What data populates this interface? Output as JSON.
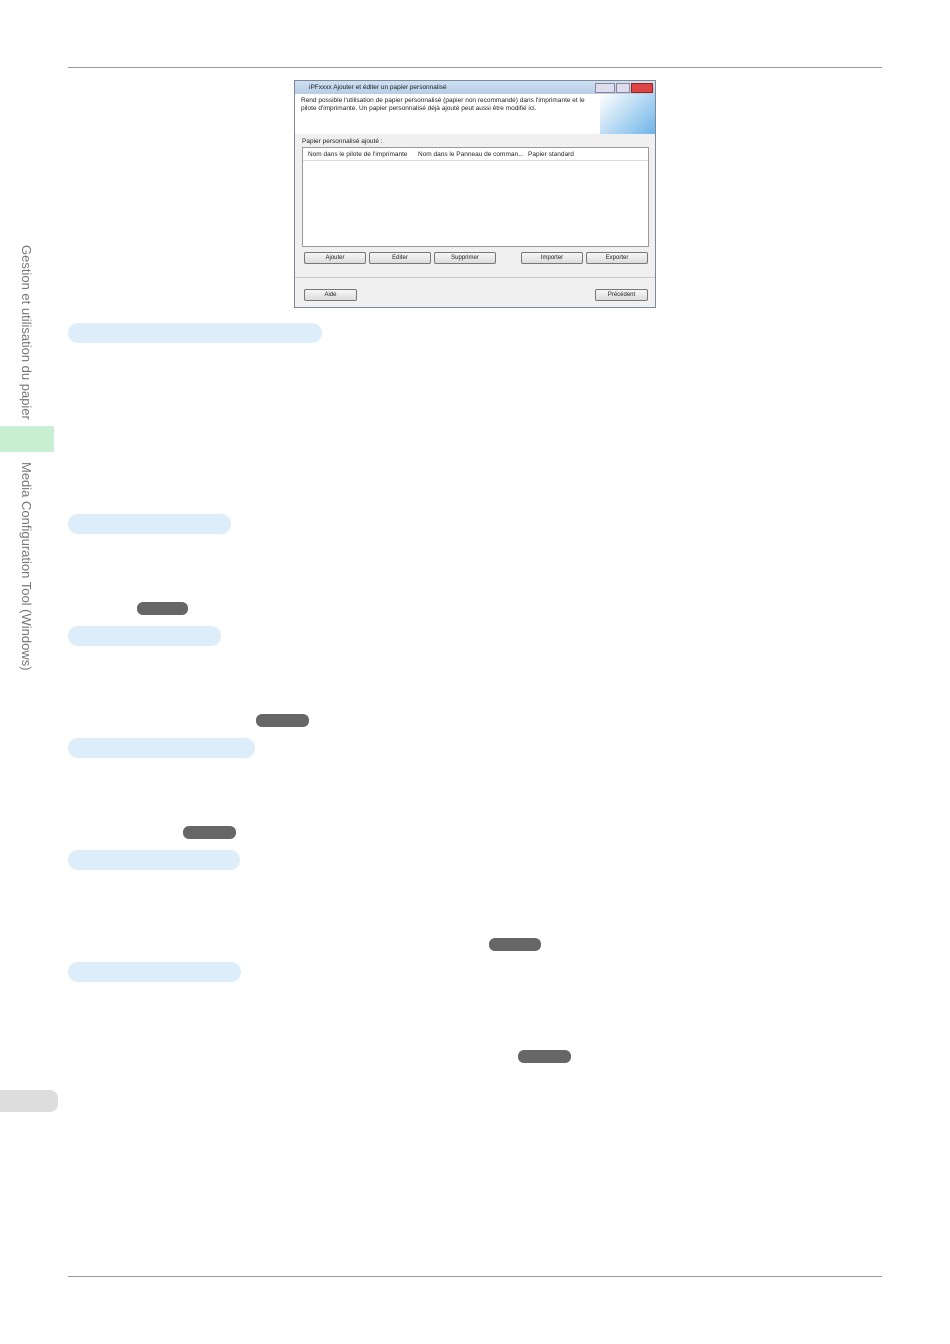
{
  "side_tabs": {
    "section": "Gestion et utilisation du papier",
    "chapter": "Media Configuration Tool (Windows)"
  },
  "dialog": {
    "title": "iPFxxxx Ajouter et éditer un papier personnalisé",
    "description": [
      "Rend possible l'utilisation de papier personnalisé (papier non recommandé) dans l'imprimante et le",
      "pilote d'imprimante. Un papier personnalisé déjà ajouté peut aussi être modifié ici."
    ],
    "list_label": "Papier personnalisé ajouté :",
    "columns": [
      "Nom dans le pilote de l'imprimante",
      "Nom dans le Panneau de comman...",
      "Papier standard"
    ],
    "buttons": [
      "Ajouter",
      "Editer",
      "Supprimer",
      "Importer",
      "Exporter"
    ],
    "footer_buttons": [
      "Aide",
      "Précédent"
    ]
  }
}
